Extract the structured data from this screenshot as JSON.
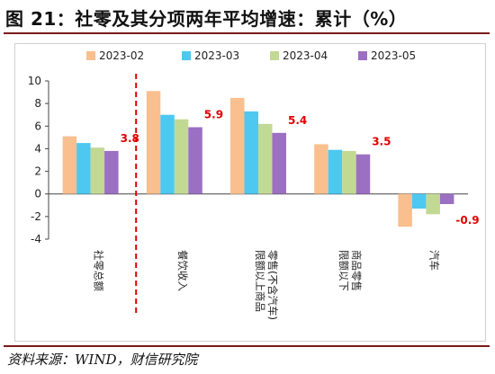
{
  "title": "图 21：社零及其分项两年平均增速：累计（%）",
  "source": "资料来源：WIND，财信研究院",
  "colors": {
    "rule": "#7a1a1a",
    "divider": "#e00000",
    "label": "#e00000"
  },
  "chart_data": {
    "type": "bar",
    "categories": [
      [
        "社零总额"
      ],
      [
        "餐饮收入"
      ],
      [
        "限额以上商品",
        "零售(不含汽车)"
      ],
      [
        "限额以下",
        "商品零售"
      ],
      [
        "汽车"
      ]
    ],
    "series": [
      {
        "name": "2023-02",
        "color": "#f9bf8e",
        "values": [
          5.1,
          9.1,
          8.5,
          4.4,
          -2.9
        ]
      },
      {
        "name": "2023-03",
        "color": "#4dc8f0",
        "values": [
          4.5,
          7.0,
          7.3,
          3.9,
          -1.3
        ]
      },
      {
        "name": "2023-04",
        "color": "#c2d994",
        "values": [
          4.1,
          6.6,
          6.2,
          3.8,
          -1.8
        ]
      },
      {
        "name": "2023-05",
        "color": "#9b6fc1",
        "values": [
          3.8,
          5.9,
          5.4,
          3.5,
          -0.9
        ]
      }
    ],
    "data_labels": [
      "3.8",
      "5.9",
      "5.4",
      "3.5",
      "-0.9"
    ],
    "y_ticks": [
      10,
      8,
      6,
      4,
      2,
      0,
      -2,
      -4
    ],
    "ylim": [
      -4,
      10
    ],
    "grid": false,
    "legend_position": "top"
  }
}
